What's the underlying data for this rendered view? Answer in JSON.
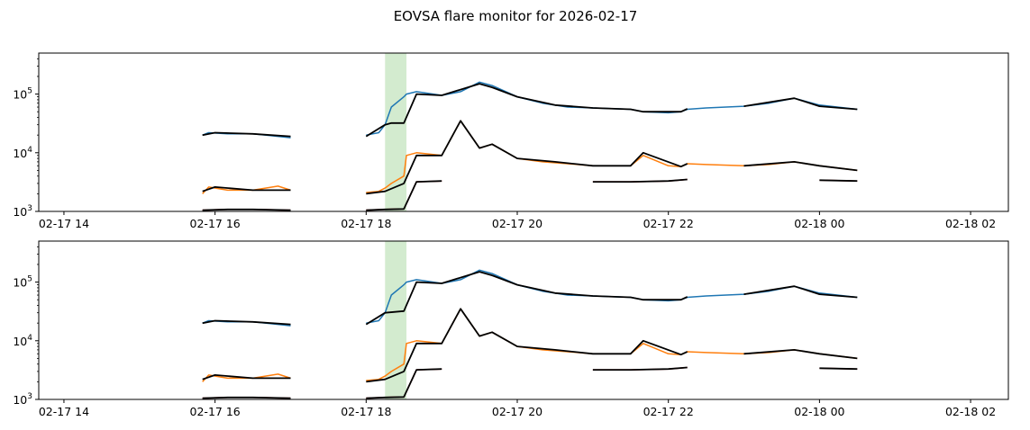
{
  "figure_title": "EOVSA flare monitor for 2026-02-17",
  "colors": {
    "band_1": "#1f77b4",
    "band_2": "#ff7f0e",
    "band_3": "#d62728",
    "smooth": "#000000",
    "flare_span": "#a8d8a0"
  },
  "chart_data": [
    {
      "type": "line",
      "yscale": "log",
      "ylim": [
        1000,
        500000
      ],
      "xlim": [
        "2026-02-17 13:40",
        "2026-02-18 02:30"
      ],
      "xticks": [
        "02-17 14",
        "02-17 16",
        "02-17 18",
        "02-17 20",
        "02-17 22",
        "02-18 00",
        "02-18 02"
      ],
      "yticks": [
        "10",
        "10",
        "10"
      ],
      "ytick_exponents": [
        "3",
        "4",
        "5"
      ],
      "xlabel": "",
      "ylabel": "",
      "shaded_span": [
        "2026-02-17 18:15",
        "2026-02-17 18:32"
      ],
      "series": [
        {
          "color": "#1f77b4",
          "x": [
            "2026-02-17 15:50",
            "2026-02-17 15:55",
            "2026-02-17 16:10",
            "2026-02-17 16:30",
            "2026-02-17 16:50",
            "2026-02-17 17:00",
            "2026-02-17 18:00",
            "2026-02-17 18:10",
            "2026-02-17 18:15",
            "2026-02-17 18:20",
            "2026-02-17 18:30",
            "2026-02-17 18:32",
            "2026-02-17 18:40",
            "2026-02-17 19:00",
            "2026-02-17 19:15",
            "2026-02-17 19:30",
            "2026-02-17 19:40",
            "2026-02-17 20:00",
            "2026-02-17 20:20",
            "2026-02-17 20:40",
            "2026-02-17 21:00",
            "2026-02-17 21:30",
            "2026-02-17 21:40",
            "2026-02-17 22:00",
            "2026-02-17 22:10",
            "2026-02-17 22:15",
            "2026-02-17 22:30",
            "2026-02-17 23:00",
            "2026-02-17 23:20",
            "2026-02-17 23:40",
            "2026-02-18 00:00",
            "2026-02-18 00:30"
          ],
          "y": [
            20000,
            22000,
            21000,
            21000,
            19000,
            18000,
            20000,
            22000,
            30000,
            60000,
            90000,
            100000,
            110000,
            95000,
            110000,
            160000,
            140000,
            90000,
            70000,
            60000,
            58000,
            55000,
            50000,
            48000,
            50000,
            55000,
            58000,
            62000,
            70000,
            85000,
            65000,
            55000
          ]
        },
        {
          "color": "#ff7f0e",
          "x": [
            "2026-02-17 15:50",
            "2026-02-17 15:55",
            "2026-02-17 16:10",
            "2026-02-17 16:30",
            "2026-02-17 16:50",
            "2026-02-17 17:00",
            "2026-02-17 18:00",
            "2026-02-17 18:10",
            "2026-02-17 18:15",
            "2026-02-17 18:20",
            "2026-02-17 18:30",
            "2026-02-17 18:32",
            "2026-02-17 18:40",
            "2026-02-17 19:00",
            "2026-02-17 19:15",
            "2026-02-17 19:30",
            "2026-02-17 19:40",
            "2026-02-17 20:00",
            "2026-02-17 20:20",
            "2026-02-17 20:40",
            "2026-02-17 21:00",
            "2026-02-17 21:30",
            "2026-02-17 21:40",
            "2026-02-17 22:00",
            "2026-02-17 22:10",
            "2026-02-17 22:15",
            "2026-02-17 22:30",
            "2026-02-17 23:00",
            "2026-02-17 23:20",
            "2026-02-17 23:40",
            "2026-02-18 00:00",
            "2026-02-18 00:30"
          ],
          "y": [
            2000,
            2600,
            2300,
            2300,
            2700,
            2300,
            2100,
            2200,
            2500,
            3000,
            4000,
            9000,
            10000,
            9000,
            35000,
            12000,
            14000,
            8000,
            7000,
            6500,
            6000,
            6000,
            9000,
            6000,
            5800,
            6500,
            6300,
            6000,
            6300,
            7000,
            6000,
            5000
          ]
        },
        {
          "color": "#d62728",
          "x": [
            "2026-02-17 15:50",
            "2026-02-17 16:10",
            "2026-02-17 16:30",
            "2026-02-17 17:00",
            "2026-02-17 18:00",
            "2026-02-17 18:15",
            "2026-02-17 18:30",
            "2026-02-17 18:40",
            "2026-02-17 19:00",
            "2026-02-17 20:00",
            "2026-02-17 21:00",
            "2026-02-17 21:30",
            "2026-02-17 22:00",
            "2026-02-17 22:15",
            "2026-02-17 23:00",
            "2026-02-18 00:00",
            "2026-02-18 00:30"
          ],
          "y": [
            1050,
            1080,
            1080,
            1050,
            1050,
            1080,
            1100,
            3200,
            3300,
            3200,
            3200,
            3200,
            3300,
            3500,
            3500,
            3400,
            3300
          ]
        },
        {
          "color": "#000000",
          "x": [
            "2026-02-17 15:50",
            "2026-02-17 16:00",
            "2026-02-17 16:30",
            "2026-02-17 17:00",
            "2026-02-17 18:00",
            "2026-02-17 18:15",
            "2026-02-17 18:20",
            "2026-02-17 18:30",
            "2026-02-17 18:40",
            "2026-02-17 19:00",
            "2026-02-17 19:30",
            "2026-02-17 19:40",
            "2026-02-17 20:00",
            "2026-02-17 20:30",
            "2026-02-17 21:00",
            "2026-02-17 21:30",
            "2026-02-17 21:40",
            "2026-02-17 22:10",
            "2026-02-17 22:15",
            "2026-02-17 23:00",
            "2026-02-17 23:40",
            "2026-02-18 00:00",
            "2026-02-18 00:30"
          ],
          "y": [
            20000,
            22000,
            21000,
            19000,
            19000,
            30000,
            32000,
            32000,
            100000,
            95000,
            150000,
            130000,
            90000,
            65000,
            58000,
            55000,
            50000,
            50000,
            56000,
            62000,
            85000,
            62000,
            55000
          ]
        },
        {
          "color": "#000000",
          "x": [
            "2026-02-17 15:50",
            "2026-02-17 16:00",
            "2026-02-17 16:30",
            "2026-02-17 17:00",
            "2026-02-17 18:00",
            "2026-02-17 18:15",
            "2026-02-17 18:30",
            "2026-02-17 18:40",
            "2026-02-17 19:00",
            "2026-02-17 19:15",
            "2026-02-17 19:30",
            "2026-02-17 19:40",
            "2026-02-17 20:00",
            "2026-02-17 20:30",
            "2026-02-17 21:00",
            "2026-02-17 21:30",
            "2026-02-17 21:40",
            "2026-02-17 22:10",
            "2026-02-17 22:15",
            "2026-02-17 23:00",
            "2026-02-17 23:40",
            "2026-02-18 00:00",
            "2026-02-18 00:30"
          ],
          "y": [
            2200,
            2600,
            2300,
            2300,
            2000,
            2200,
            3000,
            9000,
            9000,
            35000,
            12000,
            14000,
            8000,
            7000,
            6000,
            6000,
            10000,
            5800,
            6500,
            6000,
            7000,
            6000,
            5000
          ]
        },
        {
          "color": "#000000",
          "x": [
            "2026-02-17 15:50",
            "2026-02-17 16:10",
            "2026-02-17 16:30",
            "2026-02-17 17:00",
            "2026-02-17 18:00",
            "2026-02-17 18:15",
            "2026-02-17 18:30",
            "2026-02-17 18:40",
            "2026-02-17 19:00",
            "2026-02-17 20:00",
            "2026-02-17 21:00",
            "2026-02-17 21:30",
            "2026-02-17 22:00",
            "2026-02-17 22:15",
            "2026-02-17 23:00",
            "2026-02-18 00:00",
            "2026-02-18 00:30"
          ],
          "y": [
            1050,
            1080,
            1080,
            1050,
            1050,
            1080,
            1100,
            3200,
            3300,
            3200,
            3200,
            3200,
            3300,
            3500,
            3500,
            3400,
            3300
          ]
        }
      ]
    },
    {
      "type": "line",
      "yscale": "log",
      "ylim": [
        1000,
        500000
      ],
      "xlim": [
        "2026-02-17 13:40",
        "2026-02-18 02:30"
      ],
      "xticks": [
        "02-17 14",
        "02-17 16",
        "02-17 18",
        "02-17 20",
        "02-17 22",
        "02-18 00",
        "02-18 02"
      ],
      "yticks": [
        "10",
        "10",
        "10"
      ],
      "ytick_exponents": [
        "3",
        "4",
        "5"
      ],
      "xlabel": "",
      "ylabel": "",
      "shaded_span": [
        "2026-02-17 18:15",
        "2026-02-17 18:32"
      ],
      "series": [
        {
          "color": "#1f77b4",
          "x": [
            "2026-02-17 15:50",
            "2026-02-17 15:55",
            "2026-02-17 16:10",
            "2026-02-17 16:30",
            "2026-02-17 16:50",
            "2026-02-17 17:00",
            "2026-02-17 18:00",
            "2026-02-17 18:10",
            "2026-02-17 18:15",
            "2026-02-17 18:20",
            "2026-02-17 18:30",
            "2026-02-17 18:32",
            "2026-02-17 18:40",
            "2026-02-17 19:00",
            "2026-02-17 19:15",
            "2026-02-17 19:30",
            "2026-02-17 19:40",
            "2026-02-17 20:00",
            "2026-02-17 20:20",
            "2026-02-17 20:40",
            "2026-02-17 21:00",
            "2026-02-17 21:30",
            "2026-02-17 21:40",
            "2026-02-17 22:00",
            "2026-02-17 22:10",
            "2026-02-17 22:15",
            "2026-02-17 22:30",
            "2026-02-17 23:00",
            "2026-02-17 23:20",
            "2026-02-17 23:40",
            "2026-02-18 00:00",
            "2026-02-18 00:30"
          ],
          "y": [
            20000,
            22000,
            21000,
            21000,
            19000,
            18000,
            20000,
            22000,
            30000,
            60000,
            90000,
            100000,
            110000,
            95000,
            110000,
            160000,
            140000,
            90000,
            70000,
            60000,
            58000,
            55000,
            50000,
            48000,
            50000,
            55000,
            58000,
            62000,
            70000,
            85000,
            65000,
            55000
          ]
        },
        {
          "color": "#ff7f0e",
          "x": [
            "2026-02-17 15:50",
            "2026-02-17 15:55",
            "2026-02-17 16:10",
            "2026-02-17 16:30",
            "2026-02-17 16:50",
            "2026-02-17 17:00",
            "2026-02-17 18:00",
            "2026-02-17 18:10",
            "2026-02-17 18:15",
            "2026-02-17 18:20",
            "2026-02-17 18:30",
            "2026-02-17 18:32",
            "2026-02-17 18:40",
            "2026-02-17 19:00",
            "2026-02-17 19:15",
            "2026-02-17 19:30",
            "2026-02-17 19:40",
            "2026-02-17 20:00",
            "2026-02-17 20:20",
            "2026-02-17 20:40",
            "2026-02-17 21:00",
            "2026-02-17 21:30",
            "2026-02-17 21:40",
            "2026-02-17 22:00",
            "2026-02-17 22:10",
            "2026-02-17 22:15",
            "2026-02-17 22:30",
            "2026-02-17 23:00",
            "2026-02-17 23:20",
            "2026-02-17 23:40",
            "2026-02-18 00:00",
            "2026-02-18 00:30"
          ],
          "y": [
            2000,
            2600,
            2300,
            2300,
            2700,
            2300,
            2100,
            2200,
            2500,
            3000,
            4000,
            9000,
            10000,
            9000,
            35000,
            12000,
            14000,
            8000,
            7000,
            6500,
            6000,
            6000,
            9000,
            6000,
            5800,
            6500,
            6300,
            6000,
            6300,
            7000,
            6000,
            5000
          ]
        },
        {
          "color": "#d62728",
          "x": [
            "2026-02-17 15:50",
            "2026-02-17 16:10",
            "2026-02-17 16:30",
            "2026-02-17 17:00",
            "2026-02-17 18:00",
            "2026-02-17 18:15",
            "2026-02-17 18:30",
            "2026-02-17 18:40",
            "2026-02-17 19:00",
            "2026-02-17 20:00",
            "2026-02-17 21:00",
            "2026-02-17 21:30",
            "2026-02-17 22:00",
            "2026-02-17 22:15",
            "2026-02-17 23:00",
            "2026-02-18 00:00",
            "2026-02-18 00:30"
          ],
          "y": [
            1050,
            1080,
            1080,
            1050,
            1050,
            1080,
            1100,
            3200,
            3300,
            3200,
            3200,
            3200,
            3300,
            3500,
            3500,
            3400,
            3300
          ]
        },
        {
          "color": "#000000",
          "x": [
            "2026-02-17 15:50",
            "2026-02-17 16:00",
            "2026-02-17 16:30",
            "2026-02-17 17:00",
            "2026-02-17 18:00",
            "2026-02-17 18:15",
            "2026-02-17 18:30",
            "2026-02-17 18:40",
            "2026-02-17 19:00",
            "2026-02-17 19:30",
            "2026-02-17 19:40",
            "2026-02-17 20:00",
            "2026-02-17 20:30",
            "2026-02-17 21:00",
            "2026-02-17 21:30",
            "2026-02-17 21:40",
            "2026-02-17 22:10",
            "2026-02-17 22:15",
            "2026-02-17 23:00",
            "2026-02-17 23:40",
            "2026-02-18 00:00",
            "2026-02-18 00:30"
          ],
          "y": [
            20000,
            22000,
            21000,
            19000,
            19000,
            30000,
            32000,
            100000,
            95000,
            150000,
            130000,
            90000,
            65000,
            58000,
            55000,
            50000,
            50000,
            56000,
            62000,
            85000,
            62000,
            55000
          ]
        },
        {
          "color": "#000000",
          "x": [
            "2026-02-17 15:50",
            "2026-02-17 16:00",
            "2026-02-17 16:30",
            "2026-02-17 17:00",
            "2026-02-17 18:00",
            "2026-02-17 18:15",
            "2026-02-17 18:30",
            "2026-02-17 18:40",
            "2026-02-17 19:00",
            "2026-02-17 19:15",
            "2026-02-17 19:30",
            "2026-02-17 19:40",
            "2026-02-17 20:00",
            "2026-02-17 20:30",
            "2026-02-17 21:00",
            "2026-02-17 21:30",
            "2026-02-17 21:40",
            "2026-02-17 22:10",
            "2026-02-17 22:15",
            "2026-02-17 23:00",
            "2026-02-17 23:40",
            "2026-02-18 00:00",
            "2026-02-18 00:30"
          ],
          "y": [
            2200,
            2600,
            2300,
            2300,
            2000,
            2200,
            3000,
            9000,
            9000,
            35000,
            12000,
            14000,
            8000,
            7000,
            6000,
            6000,
            10000,
            5800,
            6500,
            6000,
            7000,
            6000,
            5000
          ]
        },
        {
          "color": "#000000",
          "x": [
            "2026-02-17 15:50",
            "2026-02-17 16:10",
            "2026-02-17 16:30",
            "2026-02-17 17:00",
            "2026-02-17 18:00",
            "2026-02-17 18:15",
            "2026-02-17 18:30",
            "2026-02-17 18:40",
            "2026-02-17 19:00",
            "2026-02-17 20:00",
            "2026-02-17 21:00",
            "2026-02-17 21:30",
            "2026-02-17 22:00",
            "2026-02-17 22:15",
            "2026-02-17 23:00",
            "2026-02-18 00:00",
            "2026-02-18 00:30"
          ],
          "y": [
            1050,
            1080,
            1080,
            1050,
            1050,
            1080,
            1100,
            3200,
            3300,
            3200,
            3200,
            3200,
            3300,
            3500,
            3500,
            3400,
            3300
          ]
        }
      ]
    }
  ]
}
